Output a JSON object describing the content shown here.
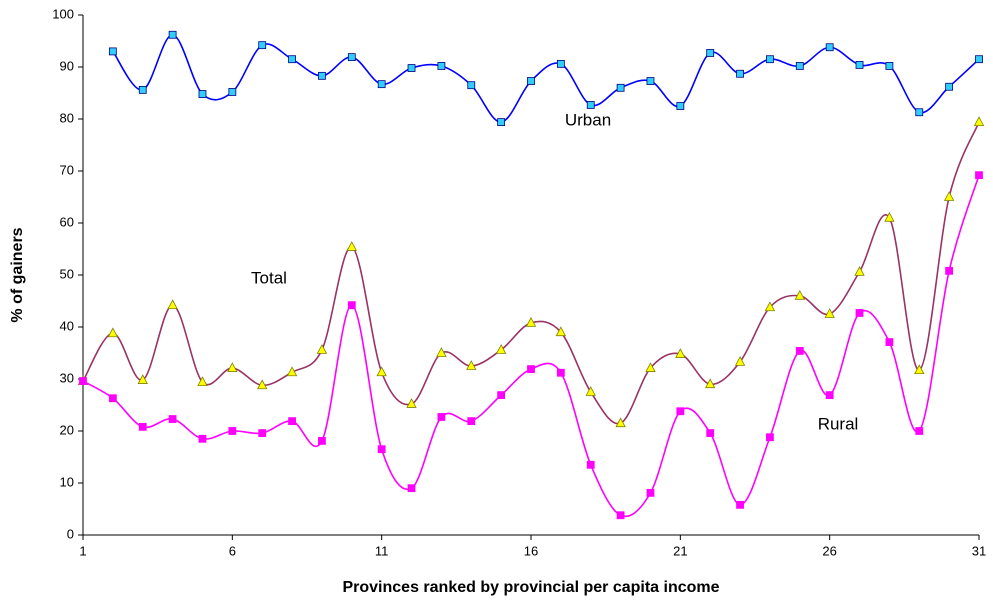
{
  "chart_data": {
    "type": "line",
    "x_label": "Provinces ranked by provincial per capita income",
    "y_label": "% of gainers",
    "x": [
      1,
      2,
      3,
      4,
      5,
      6,
      7,
      8,
      9,
      10,
      11,
      12,
      13,
      14,
      15,
      16,
      17,
      18,
      19,
      20,
      21,
      22,
      23,
      24,
      25,
      26,
      27,
      28,
      29,
      30,
      31
    ],
    "xlim": [
      1,
      31
    ],
    "xticks": [
      1,
      6,
      11,
      16,
      21,
      26,
      31
    ],
    "ylim": [
      0,
      100
    ],
    "yticks": [
      0,
      10,
      20,
      30,
      40,
      50,
      60,
      70,
      80,
      90,
      100
    ],
    "smooth": true,
    "series": [
      {
        "name": "Urban",
        "color": "#0000ff",
        "marker": "square",
        "marker_color": "#33ccff",
        "values": [
          null,
          93,
          85.6,
          96.2,
          84.8,
          85.2,
          94.2,
          91.5,
          88.3,
          91.9,
          86.7,
          89.8,
          90.2,
          86.5,
          79.4,
          87.3,
          90.6,
          82.7,
          86,
          87.3,
          82.5,
          92.7,
          88.7,
          91.5,
          90.2,
          93.8,
          90.4,
          90.2,
          81.3,
          86.2,
          91.5
        ]
      },
      {
        "name": "Total",
        "color": "#993366",
        "marker": "triangle",
        "marker_color": "#ffff00",
        "values": [
          29.6,
          38.8,
          29.8,
          44.2,
          29.4,
          32.1,
          28.8,
          31.3,
          35.6,
          55.4,
          31.3,
          25.2,
          35,
          32.5,
          35.6,
          40.8,
          39,
          27.5,
          21.5,
          32.1,
          34.8,
          29,
          33.3,
          43.8,
          46,
          42.5,
          50.6,
          61,
          31.7,
          65,
          79.4
        ]
      },
      {
        "name": "Rural",
        "color": "#ff00ff",
        "marker": "square",
        "marker_color": "#ff00ff",
        "values": [
          29.6,
          26.3,
          20.8,
          22.3,
          18.5,
          20,
          19.6,
          21.9,
          18.1,
          44.2,
          16.5,
          9,
          22.7,
          21.9,
          26.9,
          31.9,
          31.2,
          13.5,
          3.8,
          8.1,
          23.8,
          19.6,
          5.8,
          18.8,
          35.4,
          26.9,
          42.7,
          37.1,
          20,
          50.8,
          69.2
        ]
      }
    ]
  }
}
